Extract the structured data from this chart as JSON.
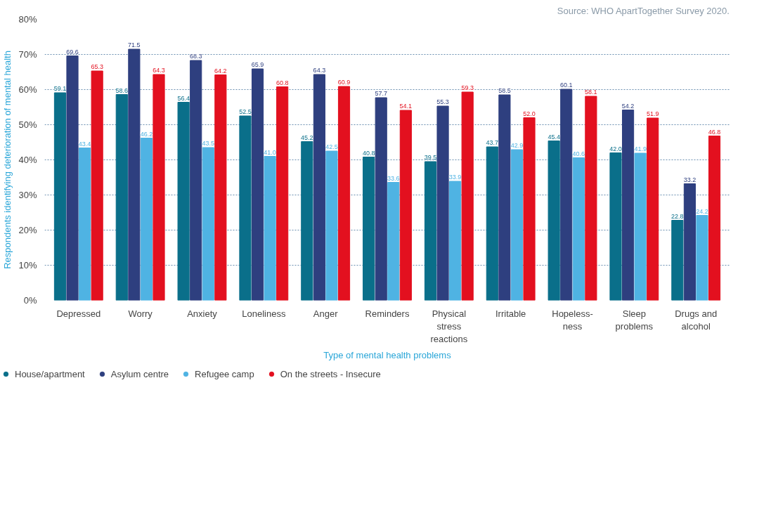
{
  "chart_data": {
    "type": "bar",
    "xlabel": "Type of mental health problems",
    "ylabel": "Respondents identifying deterioration of mental health",
    "categories": [
      "Depressed",
      "Worry",
      "Anxiety",
      "Loneliness",
      "Anger",
      "Reminders",
      "Physical\nstress\nreactions",
      "Irritable",
      "Hopeless-\nness",
      "Sleep\nproblems",
      "Drugs and\nalcohol"
    ],
    "series": [
      {
        "name": "House/apartment",
        "color": "#0a6f8a",
        "values": [
          59.1,
          58.6,
          56.4,
          52.5,
          45.2,
          40.8,
          39.5,
          43.7,
          45.4,
          42.0,
          22.8
        ],
        "value_labels": [
          "59.1",
          "58.6",
          "56.4",
          "52.5",
          "45.2",
          "40.8",
          "39.5",
          "43.7",
          "45.4",
          "42.0",
          "22.8"
        ]
      },
      {
        "name": "Asylum centre",
        "color": "#2e3f7f",
        "values": [
          69.6,
          71.5,
          68.3,
          65.9,
          64.3,
          57.7,
          55.3,
          58.5,
          60.1,
          54.2,
          33.2
        ],
        "value_labels": [
          "69.6",
          "71.5",
          "68.3",
          "65.9",
          "64.3",
          "57.7",
          "55.3",
          "58.5",
          "60.1",
          "54.2",
          "33.2"
        ]
      },
      {
        "name": "Refugee camp",
        "color": "#4fb3e3",
        "values": [
          43.4,
          46.2,
          43.5,
          41.0,
          42.5,
          33.6,
          33.9,
          42.9,
          40.6,
          41.9,
          24.2
        ],
        "value_labels": [
          "43.4",
          "46.2",
          "43.5",
          "41.0",
          "42.5",
          "33.6",
          "33.9",
          "42.9",
          "40.6",
          "41.9",
          "24.2"
        ]
      },
      {
        "name": "On the streets - Insecure",
        "color": "#e3101f",
        "values": [
          65.3,
          64.3,
          64.2,
          60.8,
          60.9,
          54.1,
          59.3,
          52.0,
          58.1,
          51.9,
          46.8
        ],
        "value_labels": [
          "65.3",
          "64.3",
          "64.2",
          "60.8",
          "60.9",
          "54.1",
          "59.3",
          "52.0",
          "58.1",
          "51.9",
          "46.8"
        ]
      }
    ],
    "ylim": [
      0,
      80
    ],
    "yticks": [
      {
        "value": 0,
        "label": "0%"
      },
      {
        "value": 10,
        "label": "10%"
      },
      {
        "value": 20,
        "label": "20%"
      },
      {
        "value": 30,
        "label": "30%"
      },
      {
        "value": 40,
        "label": "40%"
      },
      {
        "value": 50,
        "label": "50%"
      },
      {
        "value": 60,
        "label": "60%"
      },
      {
        "value": 70,
        "label": "70%"
      },
      {
        "value": 80,
        "label": "80%"
      }
    ],
    "grid": "y",
    "legend": "bottom",
    "annotations": [
      "Source: WHO ApartTogether Survey 2020."
    ]
  }
}
